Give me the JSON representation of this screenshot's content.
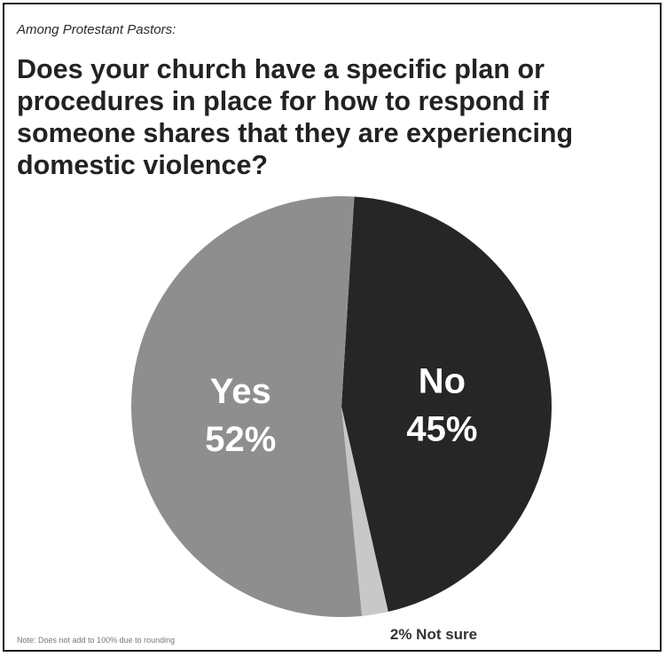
{
  "header": {
    "subtitle": "Among Protestant Pastors:",
    "title": "Does your church have a specific plan or procedures in place for how to respond if someone shares that they are experiencing domestic violence?"
  },
  "chart_data": {
    "type": "pie",
    "title": "Does your church have a specific plan or procedures in place for how to respond if someone shares that they are experiencing domestic violence?",
    "subtitle": "Among Protestant Pastors:",
    "slices": [
      {
        "name": "No",
        "value": 45,
        "label": "45%",
        "color": "#262626"
      },
      {
        "name": "Not sure",
        "value": 2,
        "label": "2% Not sure",
        "color": "#c8c8c8"
      },
      {
        "name": "Yes",
        "value": 52,
        "label": "52%",
        "color": "#8e8e8e"
      }
    ]
  },
  "footer": {
    "note": "Note: Does not add to 100% due to rounding"
  }
}
